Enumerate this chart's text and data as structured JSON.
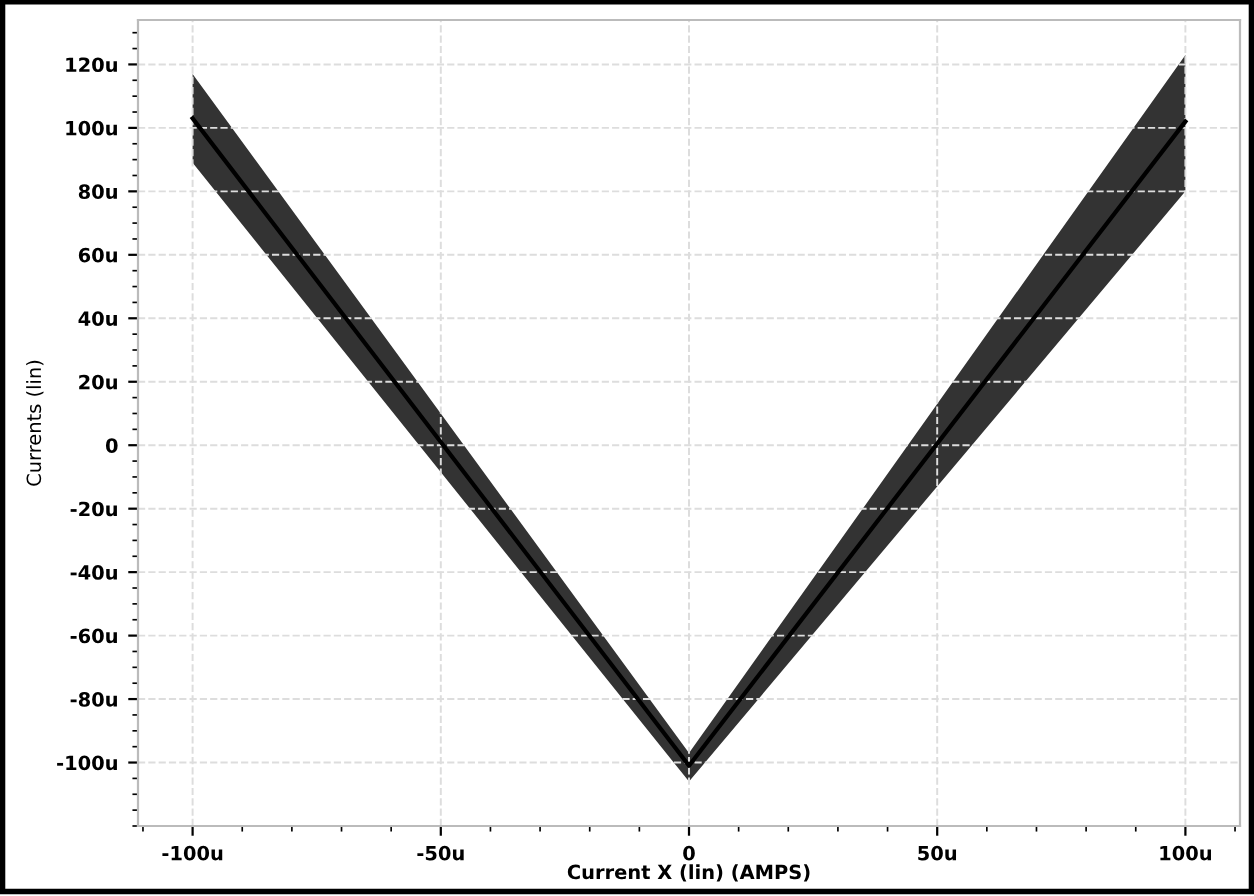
{
  "chart_data": {
    "type": "line",
    "xlabel": "Current X (lin) (AMPS)",
    "ylabel": "Currents (lin)",
    "x": [
      -100,
      0,
      100
    ],
    "series": [
      {
        "color": "#000000",
        "values": [
          103,
          -101,
          102
        ],
        "lower": [
          89,
          -106,
          80
        ],
        "upper": [
          117,
          -97,
          123
        ]
      }
    ],
    "xlim": [
      -111,
      111
    ],
    "ylim": [
      -120,
      134
    ],
    "xticks": [
      {
        "value": -100,
        "label": "-100u"
      },
      {
        "value": -50,
        "label": "-50u"
      },
      0,
      {
        "value": 50,
        "label": "50u"
      },
      {
        "value": 100,
        "label": "100u"
      }
    ],
    "yticks": [
      {
        "value": -100,
        "label": "-100u"
      },
      {
        "value": -80,
        "label": "-80u"
      },
      {
        "value": -60,
        "label": "-60u"
      },
      {
        "value": -40,
        "label": "-40u"
      },
      {
        "value": -20,
        "label": "-20u"
      },
      0,
      {
        "value": 20,
        "label": "20u"
      },
      {
        "value": 40,
        "label": "40u"
      },
      {
        "value": 60,
        "label": "60u"
      },
      {
        "value": 80,
        "label": "80u"
      },
      {
        "value": 100,
        "label": "100u"
      },
      {
        "value": 120,
        "label": "120u"
      }
    ],
    "grid": true,
    "legend": false,
    "marker": "none",
    "line_style": "solid"
  }
}
